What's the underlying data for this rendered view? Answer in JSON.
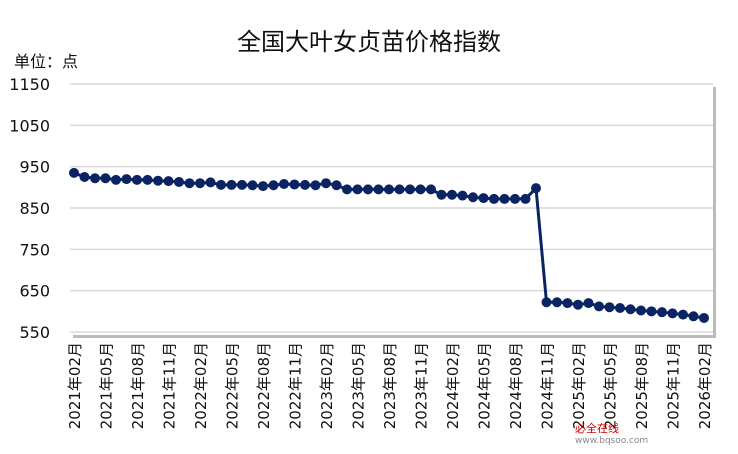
{
  "chart_data": {
    "type": "line",
    "title": "全国大叶女贞苗价格指数",
    "ylabel": "单位：点",
    "ylim": [
      550,
      1150
    ],
    "yticks": [
      550,
      650,
      750,
      850,
      950,
      1050,
      1150
    ],
    "grid": true,
    "series_color": "#0a2463",
    "x": [
      "2021年02月",
      "2021年03月",
      "2021年04月",
      "2021年05月",
      "2021年06月",
      "2021年07月",
      "2021年08月",
      "2021年09月",
      "2021年10月",
      "2021年11月",
      "2021年12月",
      "2022年01月",
      "2022年02月",
      "2022年03月",
      "2022年04月",
      "2022年05月",
      "2022年06月",
      "2022年07月",
      "2022年08月",
      "2022年09月",
      "2022年10月",
      "2022年11月",
      "2022年12月",
      "2023年01月",
      "2023年02月",
      "2023年03月",
      "2023年04月",
      "2023年05月",
      "2023年06月",
      "2023年07月",
      "2023年08月",
      "2023年09月",
      "2023年10月",
      "2023年11月",
      "2023年12月",
      "2024年01月",
      "2024年02月",
      "2024年03月",
      "2024年04月",
      "2024年05月",
      "2024年06月",
      "2024年07月",
      "2024年08月",
      "2024年09月",
      "2024年10月",
      "2024年11月",
      "2024年12月",
      "2025年01月",
      "2025年02月",
      "2025年03月",
      "2025年04月",
      "2025年05月",
      "2025年06月",
      "2025年07月",
      "2025年08月",
      "2025年09月",
      "2025年10月",
      "2025年11月",
      "2025年12月",
      "2026年01月",
      "2026年02月"
    ],
    "xticks": [
      "2021年02月",
      "2021年05月",
      "2021年08月",
      "2021年11月",
      "2022年02月",
      "2022年05月",
      "2022年08月",
      "2022年11月",
      "2023年02月",
      "2023年05月",
      "2023年08月",
      "2023年11月",
      "2024年02月",
      "2024年05月",
      "2024年08月",
      "2024年11月",
      "2025年02月",
      "2025年05月",
      "2025年08月",
      "2025年11月",
      "2026年02月"
    ],
    "values": [
      935,
      925,
      922,
      922,
      918,
      920,
      918,
      918,
      916,
      915,
      913,
      910,
      910,
      912,
      906,
      906,
      906,
      905,
      903,
      905,
      908,
      907,
      906,
      905,
      910,
      905,
      895,
      895,
      895,
      895,
      895,
      895,
      895,
      895,
      895,
      882,
      882,
      880,
      876,
      874,
      872,
      872,
      872,
      872,
      898,
      622,
      622,
      620,
      616,
      620,
      612,
      610,
      608,
      605,
      602,
      600,
      598,
      595,
      592,
      588,
      584
    ]
  },
  "watermark": {
    "name": "必全在线",
    "url": "www.bqsoo.com"
  }
}
